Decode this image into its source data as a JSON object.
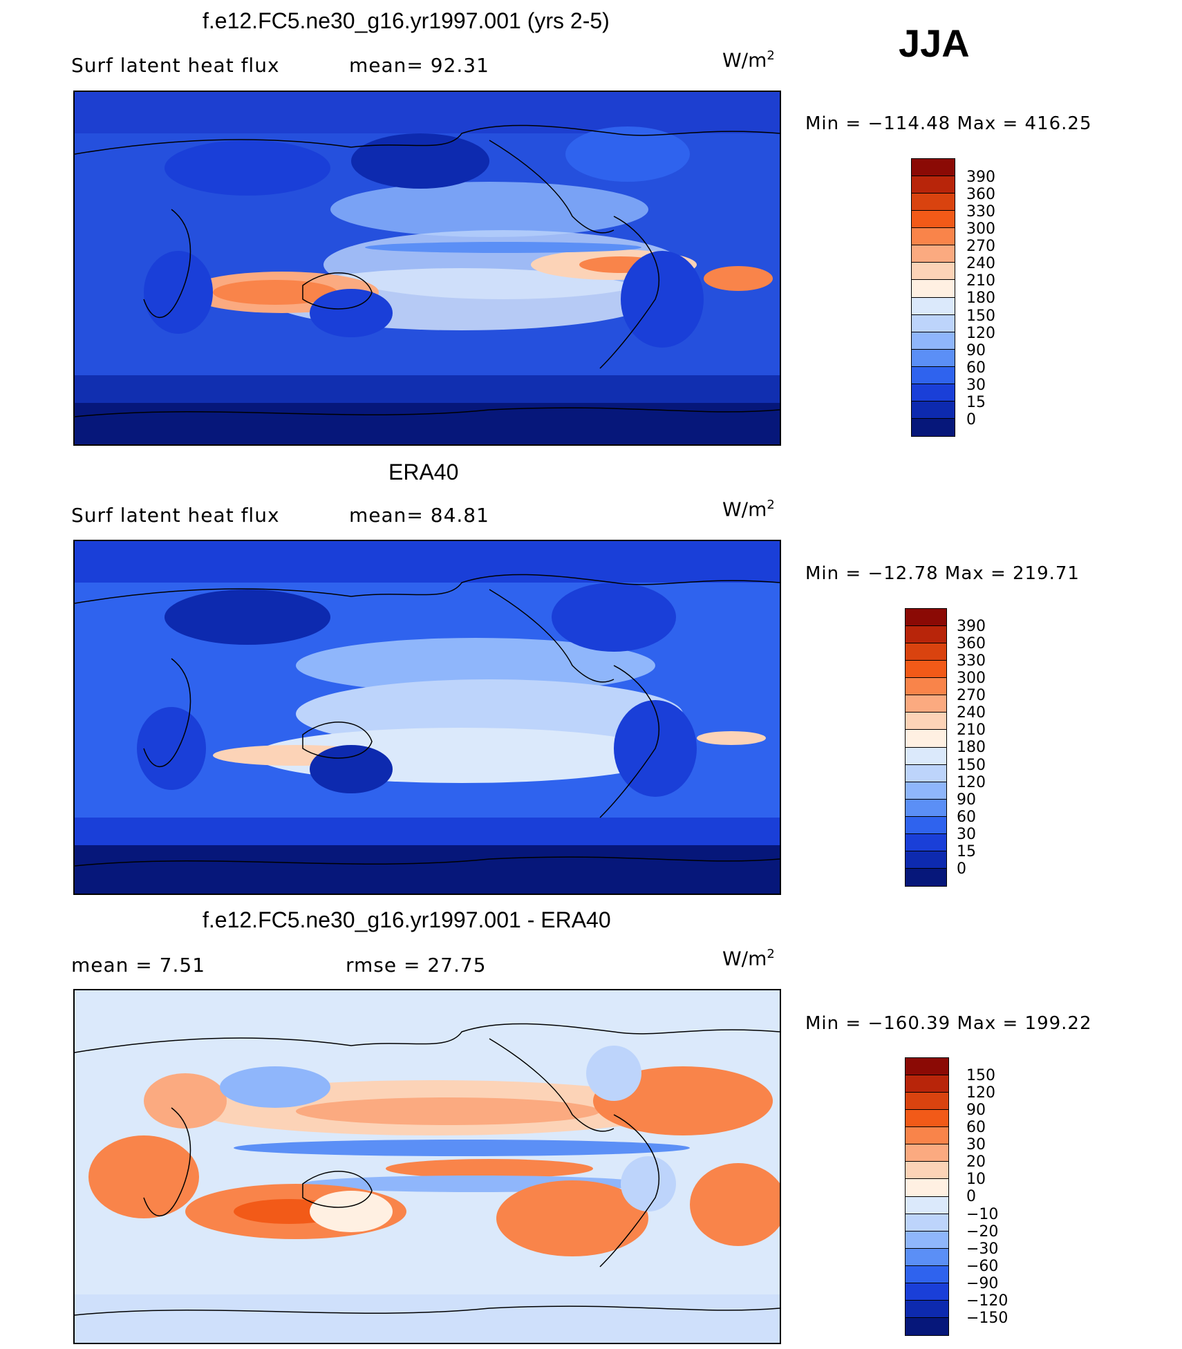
{
  "season": "JJA",
  "panels": [
    {
      "title": "f.e12.FC5.ne30_g16.yr1997.001 (yrs 2-5)",
      "left_label": "Surf  latent  heat  flux",
      "mid_label": "mean=   92.31",
      "units_base": "W/m",
      "units_exp": "2",
      "min_max": "Min  =  −114.48  Max  =  416.25",
      "colorbar": {
        "ticks": [
          "390",
          "360",
          "330",
          "300",
          "270",
          "240",
          "210",
          "180",
          "150",
          "120",
          "90",
          "60",
          "30",
          "15",
          "0"
        ],
        "colors": [
          "#8b0a05",
          "#b8250a",
          "#d9430f",
          "#f25a18",
          "#f9844a",
          "#fbaa80",
          "#fcd3b7",
          "#fff0e2",
          "#dbe9fb",
          "#bdd4fb",
          "#8fb6fb",
          "#5b8ff6",
          "#2f63ee",
          "#1a3fd8",
          "#0d2aaf",
          "#06177a"
        ]
      }
    },
    {
      "title": "ERA40",
      "left_label": "Surf  latent  heat  flux",
      "mid_label": "mean=   84.81",
      "units_base": "W/m",
      "units_exp": "2",
      "min_max": "Min  =  −12.78  Max  =  219.71",
      "colorbar": {
        "ticks": [
          "390",
          "360",
          "330",
          "300",
          "270",
          "240",
          "210",
          "180",
          "150",
          "120",
          "90",
          "60",
          "30",
          "15",
          "0"
        ],
        "colors": [
          "#8b0a05",
          "#b8250a",
          "#d9430f",
          "#f25a18",
          "#f9844a",
          "#fbaa80",
          "#fcd3b7",
          "#fff0e2",
          "#dbe9fb",
          "#bdd4fb",
          "#8fb6fb",
          "#5b8ff6",
          "#2f63ee",
          "#1a3fd8",
          "#0d2aaf",
          "#06177a"
        ]
      }
    },
    {
      "title": "f.e12.FC5.ne30_g16.yr1997.001 - ERA40",
      "left_label": "mean =     7.51",
      "mid_label": "rmse  =    27.75",
      "units_base": "W/m",
      "units_exp": "2",
      "min_max": "Min  =  −160.39  Max  =  199.22",
      "colorbar": {
        "ticks": [
          "150",
          "120",
          "90",
          "60",
          "30",
          "20",
          "10",
          "0",
          "−10",
          "−20",
          "−30",
          "−60",
          "−90",
          "−120",
          "−150"
        ],
        "colors": [
          "#8b0a05",
          "#b8250a",
          "#d9430f",
          "#f25a18",
          "#f9844a",
          "#fbaa80",
          "#fcd3b7",
          "#fff0e2",
          "#dbe9fb",
          "#bdd4fb",
          "#8fb6fb",
          "#5b8ff6",
          "#2f63ee",
          "#1a3fd8",
          "#0d2aaf",
          "#06177a"
        ]
      }
    }
  ]
}
